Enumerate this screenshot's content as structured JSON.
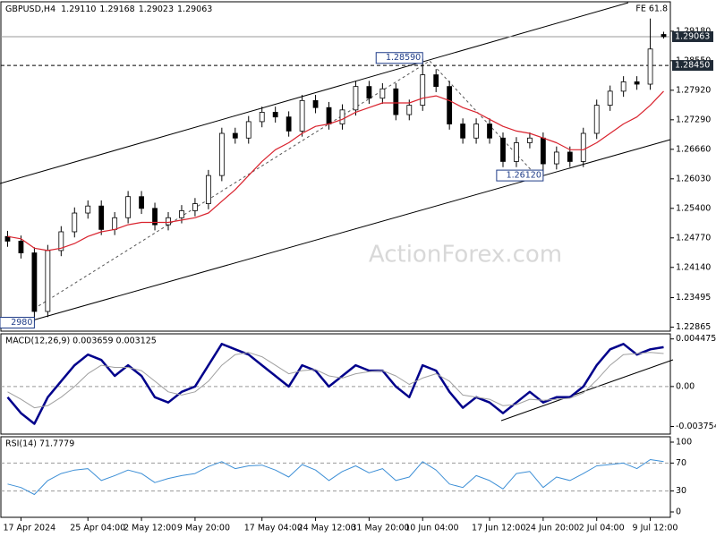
{
  "chart_data": [
    {
      "type": "candlestick",
      "title": "GBPUSD,H4",
      "ohlc_text": [
        "1.29110",
        "1.29168",
        "1.29023",
        "1.29063"
      ],
      "fib_label": "FE 61.8",
      "watermark": "ActionForex.com",
      "categories": [
        null,
        "17 Apr 2024",
        null,
        null,
        null,
        null,
        "25 Apr 04:00",
        null,
        null,
        null,
        "2 May 12:00",
        null,
        null,
        null,
        "9 May 20:00",
        null,
        null,
        null,
        null,
        "17 May 04:00",
        null,
        null,
        null,
        "24 May 12:00",
        null,
        null,
        null,
        "31 May 20:00",
        null,
        null,
        null,
        "10 Jun 04:00",
        null,
        null,
        null,
        null,
        "17 Jun 12:00",
        null,
        null,
        null,
        "24 Jun 20:00",
        null,
        null,
        null,
        "2 Jul 04:00",
        null,
        null,
        null,
        "9 Jul 12:00",
        null
      ],
      "open": [
        1.248,
        1.247,
        1.2445,
        1.232,
        1.245,
        1.249,
        1.253,
        1.2545,
        1.2495,
        1.252,
        1.2565,
        1.254,
        1.2505,
        1.252,
        1.2535,
        1.255,
        1.261,
        1.27,
        1.269,
        1.2725,
        1.2745,
        1.2735,
        1.2705,
        1.277,
        1.2755,
        1.272,
        1.275,
        1.28,
        1.2775,
        1.2795,
        1.274,
        1.276,
        1.2825,
        1.28,
        1.272,
        1.269,
        1.272,
        1.269,
        1.264,
        1.268,
        1.269,
        1.2635,
        1.266,
        1.264,
        1.27,
        1.276,
        1.279,
        1.281,
        1.2805,
        1.2911
      ],
      "high": [
        1.2492,
        1.2482,
        1.2457,
        1.2462,
        1.2502,
        1.2542,
        1.2557,
        1.2557,
        1.2532,
        1.2577,
        1.2577,
        1.2552,
        1.2532,
        1.2547,
        1.2562,
        1.2622,
        1.2712,
        1.2712,
        1.2737,
        1.2757,
        1.2757,
        1.2747,
        1.2782,
        1.2782,
        1.2767,
        1.2762,
        1.2812,
        1.2812,
        1.2807,
        1.2807,
        1.2772,
        1.2859,
        1.2837,
        1.2812,
        1.2732,
        1.2732,
        1.2732,
        1.2702,
        1.2692,
        1.2702,
        1.2702,
        1.2672,
        1.2672,
        1.2712,
        1.2772,
        1.2802,
        1.2822,
        1.2822,
        1.2945,
        1.29168
      ],
      "low": [
        1.2458,
        1.2433,
        1.2298,
        1.2308,
        1.2438,
        1.2478,
        1.2518,
        1.2483,
        1.2483,
        1.2508,
        1.2528,
        1.2493,
        1.2493,
        1.2508,
        1.2523,
        1.2538,
        1.2598,
        1.2678,
        1.2678,
        1.2713,
        1.2723,
        1.2693,
        1.2693,
        1.2743,
        1.2708,
        1.2708,
        1.2738,
        1.2763,
        1.2763,
        1.2728,
        1.2728,
        1.2748,
        1.2788,
        1.2708,
        1.2678,
        1.2678,
        1.2678,
        1.2628,
        1.2628,
        1.2668,
        1.2612,
        1.2623,
        1.2628,
        1.2628,
        1.2688,
        1.2748,
        1.2778,
        1.2793,
        1.2793,
        1.29023
      ],
      "close": [
        1.247,
        1.2445,
        1.232,
        1.245,
        1.249,
        1.253,
        1.2545,
        1.2495,
        1.252,
        1.2565,
        1.254,
        1.2505,
        1.252,
        1.2535,
        1.255,
        1.261,
        1.27,
        1.269,
        1.2725,
        1.2745,
        1.2735,
        1.2705,
        1.277,
        1.2755,
        1.272,
        1.275,
        1.28,
        1.2775,
        1.2795,
        1.274,
        1.276,
        1.2825,
        1.28,
        1.272,
        1.269,
        1.272,
        1.269,
        1.264,
        1.268,
        1.269,
        1.2635,
        1.266,
        1.264,
        1.27,
        1.276,
        1.279,
        1.281,
        1.2805,
        1.288,
        1.29063
      ],
      "series": [
        {
          "color": "#d9232e",
          "values": [
            1.248,
            1.2475,
            1.2455,
            1.245,
            1.2455,
            1.2465,
            1.248,
            1.249,
            1.2495,
            1.2505,
            1.251,
            1.251,
            1.251,
            1.2515,
            1.252,
            1.253,
            1.2555,
            1.258,
            1.261,
            1.264,
            1.2665,
            1.268,
            1.27,
            1.2715,
            1.272,
            1.273,
            1.2745,
            1.2755,
            1.2765,
            1.2765,
            1.2765,
            1.2775,
            1.278,
            1.277,
            1.2755,
            1.2745,
            1.273,
            1.2715,
            1.2705,
            1.27,
            1.269,
            1.268,
            1.2665,
            1.2665,
            1.268,
            1.27,
            1.272,
            1.2735,
            1.276,
            1.279
          ]
        }
      ],
      "ylim": [
        1.2278,
        1.2975
      ],
      "yticks": [
        {
          "value": 1.2918,
          "label": "1.29180"
        },
        {
          "value": 1.2855,
          "label": "1.28550"
        },
        {
          "value": 1.2792,
          "label": "1.27920"
        },
        {
          "value": 1.2729,
          "label": "1.27290"
        },
        {
          "value": 1.2666,
          "label": "1.26660"
        },
        {
          "value": 1.2603,
          "label": "1.26030"
        },
        {
          "value": 1.254,
          "label": "1.25400"
        },
        {
          "value": 1.2477,
          "label": "1.24770"
        },
        {
          "value": 1.2414,
          "label": "1.24140"
        },
        1.23495,
        1.22865
      ],
      "levels": [
        {
          "value": 1.29063,
          "label": "1.29063",
          "style": "solid"
        },
        {
          "value": 1.2845,
          "label": "1.28450",
          "style": "dashed"
        }
      ],
      "annotations": [
        {
          "value": 1.2859,
          "label": "1.28590"
        },
        {
          "value": 1.2612,
          "label": "1.26120"
        },
        {
          "value": 1.2298,
          "label": "2980"
        }
      ]
    },
    {
      "type": "line",
      "title": "MACD(12,26,9) 0.003659 0.003125",
      "series": [
        {
          "color": "#00008b",
          "width": 2.5,
          "values": [
            -0.001,
            -0.0025,
            -0.0035,
            -0.001,
            0.0005,
            0.002,
            0.003,
            0.0025,
            0.001,
            0.002,
            0.001,
            -0.001,
            -0.0015,
            -0.0005,
            0.0,
            0.002,
            0.004,
            0.0035,
            0.003,
            0.002,
            0.001,
            0.0,
            0.002,
            0.0015,
            0.0,
            0.001,
            0.002,
            0.0015,
            0.0015,
            0.0,
            -0.001,
            0.002,
            0.0015,
            -0.0005,
            -0.002,
            -0.001,
            -0.0015,
            -0.0025,
            -0.0015,
            -0.0005,
            -0.0015,
            -0.001,
            -0.001,
            0.0,
            0.002,
            0.0035,
            0.004,
            0.003,
            0.0035,
            0.0037
          ]
        },
        {
          "color": "#a0a0a0",
          "width": 1,
          "values": [
            -0.0005,
            -0.0012,
            -0.002,
            -0.0018,
            -0.001,
            0.0,
            0.0012,
            0.002,
            0.0018,
            0.0018,
            0.0015,
            0.0005,
            -0.0005,
            -0.0008,
            -0.0005,
            0.0005,
            0.002,
            0.003,
            0.0032,
            0.0028,
            0.002,
            0.0012,
            0.0015,
            0.0016,
            0.001,
            0.0008,
            0.0012,
            0.0014,
            0.0015,
            0.001,
            0.0002,
            0.0008,
            0.0012,
            0.0005,
            -0.0008,
            -0.001,
            -0.0012,
            -0.0018,
            -0.0017,
            -0.0012,
            -0.0013,
            -0.0012,
            -0.0011,
            -0.0006,
            0.0006,
            0.002,
            0.003,
            0.0031,
            0.0032,
            0.0031
          ]
        }
      ],
      "ylim": [
        -0.00447,
        0.00487
      ],
      "yticks": [
        0.004475,
        {
          "value": 0,
          "label": "0.00"
        },
        -0.003754
      ],
      "levels": [
        0
      ]
    },
    {
      "type": "line",
      "title": "RSI(14) 71.7779",
      "series": [
        {
          "color": "#3d8fd6",
          "width": 1,
          "values": [
            40,
            35,
            25,
            45,
            55,
            60,
            62,
            45,
            52,
            60,
            55,
            42,
            48,
            52,
            55,
            65,
            72,
            62,
            66,
            67,
            60,
            50,
            68,
            60,
            45,
            58,
            66,
            56,
            62,
            45,
            50,
            72,
            60,
            40,
            35,
            52,
            45,
            33,
            55,
            58,
            35,
            50,
            45,
            55,
            66,
            68,
            70,
            62,
            75,
            72
          ]
        }
      ],
      "ylim": [
        -7.7,
        106.4
      ],
      "yticks": [
        100,
        70,
        30,
        0
      ],
      "levels": [
        70,
        30
      ]
    }
  ]
}
